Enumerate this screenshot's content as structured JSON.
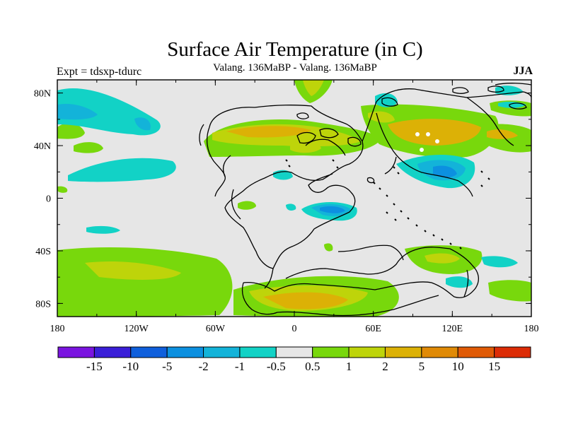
{
  "title": "Surface Air Temperature (in C)",
  "subtitle": "Valang. 136MaBP - Valang.  136MaBP",
  "left_label": "Expt = tdsxp-tdurc",
  "season": "JJA",
  "axes": {
    "x_ticks": [
      "180",
      "120W",
      "60W",
      "0",
      "60E",
      "120E",
      "180"
    ],
    "y_ticks": [
      "80N",
      "40N",
      "0",
      "40S",
      "80S"
    ]
  },
  "colorbar": {
    "colors": [
      "#7a14e0",
      "#3a1fd8",
      "#0f5fdc",
      "#0c90e0",
      "#13b3d9",
      "#12d2c6",
      "#e6e6e6",
      "#78d80c",
      "#bed40a",
      "#dcb106",
      "#e08a06",
      "#e05a06",
      "#dc2c06"
    ],
    "labels": [
      "-15",
      "-10",
      "-5",
      "-2",
      "-1",
      "-0.5",
      "0.5",
      "1",
      "2",
      "5",
      "10",
      "15"
    ]
  },
  "fills": {
    "background": "#e6e6e6",
    "cyan": "#12d2c6",
    "light_blue": "#13b3d9",
    "blue": "#0c90e0",
    "green": "#78d80c",
    "yellow_green": "#bed40a",
    "orange": "#dcb106"
  }
}
